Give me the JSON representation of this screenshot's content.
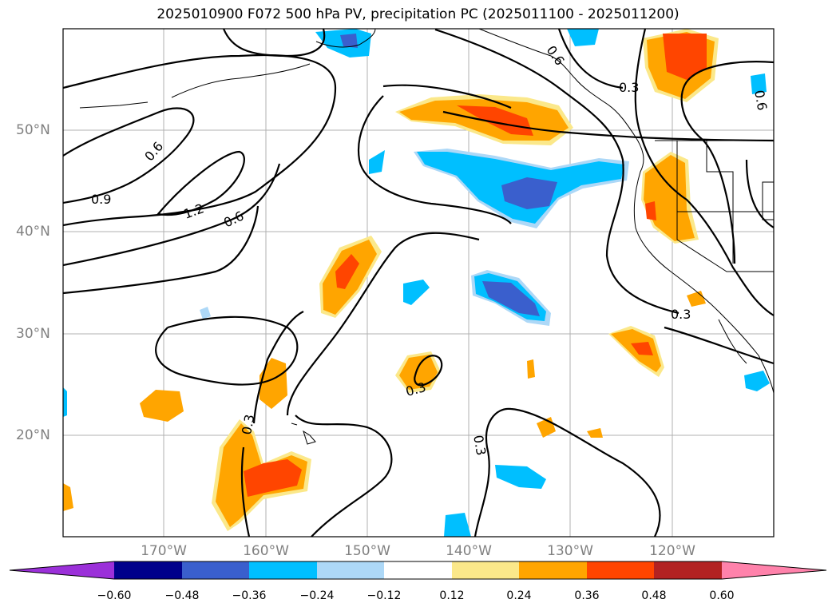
{
  "title": "2025010900 F072 500 hPa PV, precipitation PC (2025011100 - 2025011200)",
  "lat_labels": [
    "50°N",
    "40°N",
    "30°N",
    "20°N"
  ],
  "lon_labels": [
    "170°W",
    "160°W",
    "150°W",
    "140°W",
    "130°W",
    "120°W"
  ],
  "contour_labels": [
    "0.6",
    "0.9",
    "1.2",
    "0.6",
    "0.6",
    "0.3",
    "0.6",
    "0.3",
    "0.3",
    "0.3",
    "0.3"
  ],
  "colorbar": {
    "ticks": [
      "−0.60",
      "−0.48",
      "−0.36",
      "−0.24",
      "−0.12",
      "0.12",
      "0.24",
      "0.36",
      "0.48",
      "0.60"
    ],
    "colors": [
      "#9b30d9",
      "#00008b",
      "#3a5fcd",
      "#00bfff",
      "#add8f7",
      "#ffffff",
      "#fbe88a",
      "#ffa500",
      "#ff4500",
      "#b22222",
      "#ff82ab"
    ]
  },
  "fill_colors": {
    "orange": "#ffa500",
    "light_yellow": "#fbe88a",
    "red_orange": "#ff4500",
    "sky_blue": "#00bfff",
    "light_blue": "#add8f7",
    "royal_blue": "#3a5fcd"
  }
}
